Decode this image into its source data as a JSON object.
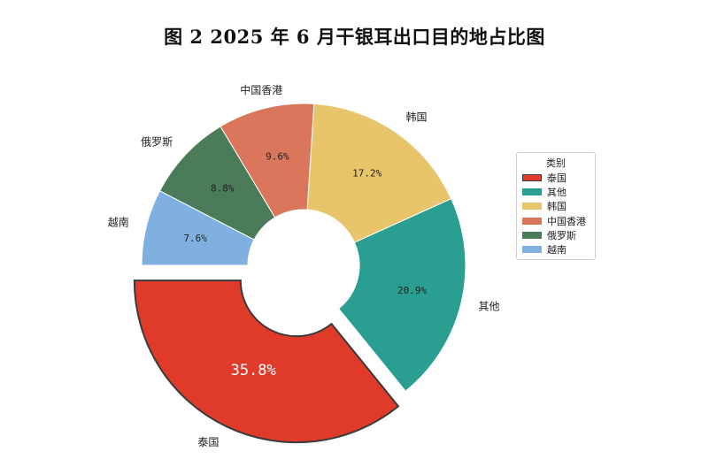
{
  "title": "图 2 2025 年 6 月干银耳出口目的地占比图",
  "legend": {
    "title": "类别"
  },
  "chart_data": {
    "type": "pie",
    "title": "图 2 2025 年 6 月干银耳出口目的地占比图",
    "style": "donut",
    "start_angle_deg": 180,
    "legend_title": "类别",
    "legend_placement": "right",
    "slices": [
      {
        "label": "泰国",
        "value": 35.8,
        "pct_label": "35.8%",
        "color": "#e03a2b",
        "exploded": true
      },
      {
        "label": "其他",
        "value": 20.9,
        "pct_label": "20.9%",
        "color": "#2a9e91",
        "exploded": false
      },
      {
        "label": "韩国",
        "value": 17.2,
        "pct_label": "17.2%",
        "color": "#e8c46a",
        "exploded": false
      },
      {
        "label": "中国香港",
        "value": 9.6,
        "pct_label": "9.6%",
        "color": "#d9765b",
        "exploded": false
      },
      {
        "label": "俄罗斯",
        "value": 8.8,
        "pct_label": "8.8%",
        "color": "#4a7c59",
        "exploded": false
      },
      {
        "label": "越南",
        "value": 7.6,
        "pct_label": "7.6%",
        "color": "#7fb0e0",
        "exploded": false
      }
    ]
  }
}
